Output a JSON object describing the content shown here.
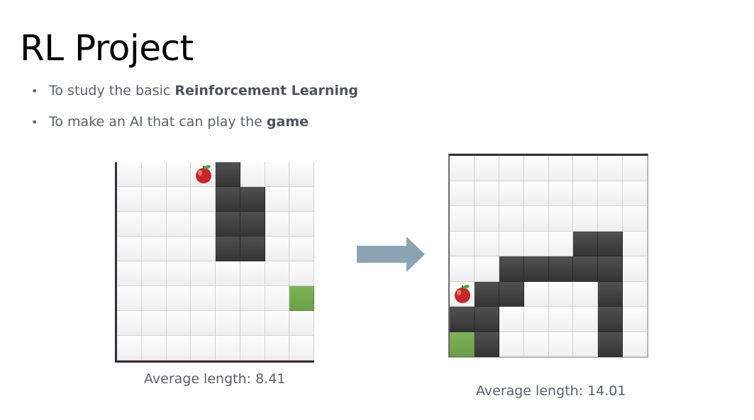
{
  "title": "RL Project",
  "bullets": [
    {
      "text": "To study the basic ",
      "bold": "Reinforcement Learning"
    },
    {
      "text": "To make an AI that can play the ",
      "bold": "game"
    }
  ],
  "bullet_glyph": "•",
  "left_board": {
    "rows": 8,
    "cols": 8,
    "apple": [
      0,
      3
    ],
    "head": [
      5,
      7
    ],
    "snake": [
      [
        0,
        4
      ],
      [
        1,
        4
      ],
      [
        1,
        5
      ],
      [
        2,
        4
      ],
      [
        2,
        5
      ],
      [
        3,
        4
      ],
      [
        3,
        5
      ]
    ],
    "caption": "Average length: 8.41"
  },
  "right_board": {
    "rows": 8,
    "cols": 8,
    "apple": [
      5,
      0
    ],
    "head": [
      7,
      0
    ],
    "snake": [
      [
        3,
        5
      ],
      [
        3,
        6
      ],
      [
        4,
        2
      ],
      [
        4,
        3
      ],
      [
        4,
        4
      ],
      [
        4,
        5
      ],
      [
        4,
        6
      ],
      [
        5,
        1
      ],
      [
        5,
        2
      ],
      [
        5,
        6
      ],
      [
        6,
        0
      ],
      [
        6,
        1
      ],
      [
        6,
        6
      ],
      [
        7,
        1
      ],
      [
        7,
        6
      ]
    ],
    "caption": "Average length: 14.01"
  },
  "colors": {
    "snake_body": "#3d3d3d",
    "snake_head": "#74a84f",
    "apple": "#c62828",
    "arrow": "#8aa4b4"
  },
  "icons": {
    "apple": "apple-icon",
    "arrow": "right-arrow-icon"
  }
}
